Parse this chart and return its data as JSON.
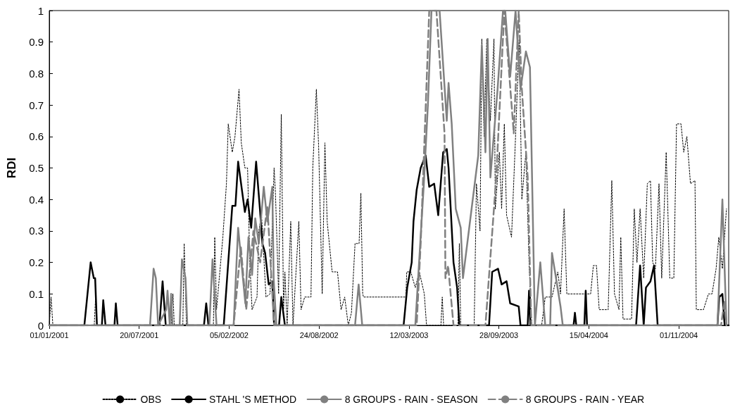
{
  "chart_data": {
    "type": "line",
    "ylabel": "RDI",
    "ylim": [
      0,
      1
    ],
    "yticks": [
      0,
      0.1,
      0.2,
      0.3,
      0.4,
      0.5,
      0.6,
      0.7,
      0.8,
      0.9,
      1
    ],
    "xlim": [
      "2001-01-01",
      "2005-02-20"
    ],
    "xticks": [
      {
        "value": "2001-01-01",
        "label": "01/01/2001"
      },
      {
        "value": "2001-07-20",
        "label": "20/07/2001"
      },
      {
        "value": "2002-02-05",
        "label": "05/02/2002"
      },
      {
        "value": "2002-08-24",
        "label": "24/08/2002"
      },
      {
        "value": "2003-03-12",
        "label": "12/03/2003"
      },
      {
        "value": "2003-09-28",
        "label": "28/09/2003"
      },
      {
        "value": "2004-04-15",
        "label": "15/04/2004"
      },
      {
        "value": "2004-11-01",
        "label": "01/11/2004"
      }
    ],
    "grid": false,
    "legend": "bottom",
    "marker": "none",
    "series": [
      {
        "name": "OBS",
        "color": "#000000",
        "line_style": "dotted",
        "x": [
          "2001-01-01",
          "2001-01-05",
          "2001-01-09",
          "2001-04-11",
          "2001-04-14",
          "2001-04-17",
          "2001-09-29",
          "2001-10-03",
          "2001-10-06",
          "2001-10-25",
          "2001-10-28",
          "2001-11-02",
          "2002-01-01",
          "2002-01-04",
          "2002-01-08",
          "2002-01-22",
          "2002-01-30",
          "2002-02-03",
          "2002-02-12",
          "2002-02-18",
          "2002-02-27",
          "2002-03-04",
          "2002-03-12",
          "2002-03-18",
          "2002-03-23",
          "2002-03-28",
          "2002-04-08",
          "2002-04-12",
          "2002-04-18",
          "2002-04-28",
          "2002-05-07",
          "2002-05-16",
          "2002-05-19",
          "2002-05-26",
          "2002-06-01",
          "2002-06-06",
          "2002-06-09",
          "2002-06-14",
          "2002-06-22",
          "2002-06-27",
          "2002-07-10",
          "2002-07-15",
          "2002-07-23",
          "2002-08-06",
          "2002-08-10",
          "2002-08-18",
          "2002-08-23",
          "2002-08-31",
          "2002-09-06",
          "2002-09-11",
          "2002-09-22",
          "2002-10-04",
          "2002-10-12",
          "2002-10-20",
          "2002-10-28",
          "2002-11-04",
          "2002-11-12",
          "2002-11-21",
          "2002-11-25",
          "2002-11-29",
          "2002-12-01",
          "2003-03-05",
          "2003-03-07",
          "2003-03-16",
          "2003-03-26",
          "2003-04-04",
          "2003-04-15",
          "2003-04-20",
          "2003-05-22",
          "2003-05-25",
          "2003-05-28",
          "2003-06-29",
          "2003-07-02",
          "2003-07-05",
          "2003-08-04",
          "2003-08-09",
          "2003-08-17",
          "2003-08-21",
          "2003-08-26",
          "2003-09-01",
          "2003-09-09",
          "2003-09-17",
          "2003-09-20",
          "2003-09-29",
          "2003-10-04",
          "2003-10-10",
          "2003-10-15",
          "2003-10-26",
          "2003-11-04",
          "2003-11-12",
          "2003-11-18",
          "2003-11-27",
          "2003-12-04",
          "2003-12-10",
          "2004-01-01",
          "2004-01-09",
          "2004-01-24",
          "2004-02-06",
          "2004-02-12",
          "2004-02-20",
          "2004-02-26",
          "2004-04-19",
          "2004-04-25",
          "2004-05-02",
          "2004-05-08",
          "2004-05-28",
          "2004-06-05",
          "2004-06-11",
          "2004-06-21",
          "2004-06-25",
          "2004-06-30",
          "2004-07-19",
          "2004-07-25",
          "2004-07-31",
          "2004-08-07",
          "2004-08-15",
          "2004-08-23",
          "2004-08-30",
          "2004-09-04",
          "2004-09-10",
          "2004-09-18",
          "2004-09-24",
          "2004-10-04",
          "2004-10-12",
          "2004-10-21",
          "2004-10-27",
          "2004-11-06",
          "2004-11-12",
          "2004-11-19",
          "2004-11-27",
          "2004-12-07",
          "2004-12-10",
          "2004-12-26",
          "2005-01-06",
          "2005-01-14",
          "2005-01-23",
          "2005-01-29",
          "2005-02-06",
          "2005-02-15"
        ],
        "values": [
          0,
          0.09,
          0,
          0,
          0.09,
          0,
          0,
          0.1,
          0,
          0,
          0.26,
          0,
          0,
          0.28,
          0.05,
          0.28,
          0.45,
          0.64,
          0.55,
          0.6,
          0.75,
          0.58,
          0.5,
          0.5,
          0.2,
          0.05,
          0.09,
          0.3,
          0.35,
          0.09,
          0.1,
          0.5,
          0.42,
          0.1,
          0.67,
          0.05,
          0.17,
          0,
          0.33,
          0,
          0.33,
          0.05,
          0.09,
          0.09,
          0.5,
          0.75,
          0.57,
          0.1,
          0.58,
          0.33,
          0.17,
          0.17,
          0.05,
          0.09,
          0,
          0.04,
          0.26,
          0.26,
          0.42,
          0.1,
          0.09,
          0.09,
          0.17,
          0.17,
          0.12,
          0.17,
          0.1,
          0,
          0,
          0.09,
          0,
          0,
          0.26,
          0,
          0,
          0.45,
          0.3,
          0.91,
          0.6,
          0.91,
          0.65,
          0.91,
          0.37,
          0.55,
          0.37,
          0.64,
          0.35,
          0.28,
          0.6,
          0.91,
          0.4,
          0.55,
          0.2,
          0,
          0,
          0.09,
          0.09,
          0.17,
          0.1,
          0.37,
          0.1,
          0.1,
          0.19,
          0.19,
          0.05,
          0.05,
          0.46,
          0.1,
          0.05,
          0.28,
          0.02,
          0.02,
          0.37,
          0.2,
          0.37,
          0.15,
          0.45,
          0.46,
          0.2,
          0.18,
          0.45,
          0.15,
          0.55,
          0.15,
          0.15,
          0.64,
          0.64,
          0.55,
          0.6,
          0.45,
          0.46,
          0.05,
          0.05,
          0.1,
          0.1,
          0.18,
          0.28,
          0.18,
          0.37
        ]
      },
      {
        "name": "STAHL 'S METHOD",
        "color": "#000000",
        "line_style": "solid",
        "x": [
          "2001-01-01",
          "2001-03-20",
          "2001-04-03",
          "2001-04-10",
          "2001-04-13",
          "2001-04-17",
          "2001-04-28",
          "2001-05-01",
          "2001-05-06",
          "2001-05-26",
          "2001-05-29",
          "2001-06-02",
          "2001-09-03",
          "2001-09-10",
          "2001-09-17",
          "2001-12-11",
          "2001-12-16",
          "2001-12-21",
          "2002-01-24",
          "2002-02-12",
          "2002-02-19",
          "2002-02-25",
          "2002-03-12",
          "2002-03-18",
          "2002-03-26",
          "2002-04-06",
          "2002-04-15",
          "2002-04-20",
          "2002-04-26",
          "2002-05-04",
          "2002-05-12",
          "2002-05-16",
          "2002-05-27",
          "2002-06-01",
          "2002-06-09",
          "2003-02-28",
          "2003-03-08",
          "2003-03-18",
          "2003-03-22",
          "2003-03-29",
          "2003-04-07",
          "2003-04-18",
          "2003-04-26",
          "2003-05-07",
          "2003-05-16",
          "2003-05-27",
          "2003-06-04",
          "2003-06-08",
          "2003-06-19",
          "2003-06-27",
          "2003-07-02",
          "2003-09-06",
          "2003-09-13",
          "2003-09-26",
          "2003-10-04",
          "2003-10-15",
          "2003-10-23",
          "2003-11-11",
          "2003-11-15",
          "2003-12-01",
          "2003-12-04",
          "2003-12-07",
          "2004-03-12",
          "2004-03-15",
          "2004-03-18",
          "2004-04-05",
          "2004-04-08",
          "2004-04-11",
          "2004-07-29",
          "2004-08-07",
          "2004-08-15",
          "2004-08-20",
          "2004-08-30",
          "2004-09-07",
          "2004-09-15",
          "2005-01-26",
          "2005-01-30",
          "2005-02-06",
          "2005-02-11",
          "2005-02-20"
        ],
        "values": [
          0,
          0,
          0.2,
          0.15,
          0.15,
          0,
          0,
          0.08,
          0,
          0,
          0.07,
          0,
          0,
          0.14,
          0,
          0,
          0.07,
          0,
          0,
          0.38,
          0.38,
          0.52,
          0.36,
          0.4,
          0.31,
          0.52,
          0.36,
          0.26,
          0.23,
          0.13,
          0.14,
          0,
          0,
          0.09,
          0,
          0,
          0.12,
          0.2,
          0.33,
          0.43,
          0.5,
          0.54,
          0.44,
          0.45,
          0.35,
          0.55,
          0.56,
          0.5,
          0.2,
          0.12,
          0,
          0,
          0.17,
          0.18,
          0.13,
          0.14,
          0.07,
          0.06,
          0,
          0,
          0.11,
          0,
          0,
          0.04,
          0,
          0,
          0.11,
          0,
          0,
          0.19,
          0,
          0.12,
          0.14,
          0.19,
          0,
          0,
          0.09,
          0.1,
          0,
          0
        ]
      },
      {
        "name": "8 GROUPS - RAIN - SEASON",
        "color": "#808080",
        "line_style": "solid",
        "x": [
          "2001-01-01",
          "2001-08-13",
          "2001-08-21",
          "2001-08-26",
          "2001-08-31",
          "2001-09-18",
          "2001-09-21",
          "2001-09-26",
          "2001-09-29",
          "2001-10-02",
          "2001-10-18",
          "2001-10-23",
          "2001-10-31",
          "2001-11-04",
          "2001-12-23",
          "2001-12-30",
          "2002-01-08",
          "2002-02-15",
          "2002-02-25",
          "2002-03-13",
          "2002-03-20",
          "2002-03-28",
          "2002-04-04",
          "2002-04-12",
          "2002-04-23",
          "2002-05-01",
          "2002-05-12",
          "2002-05-15",
          "2002-05-21",
          "2002-11-12",
          "2002-11-20",
          "2002-11-28",
          "2003-03-26",
          "2003-04-14",
          "2003-04-23",
          "2003-05-01",
          "2003-05-19",
          "2003-06-04",
          "2003-06-08",
          "2003-06-15",
          "2003-06-24",
          "2003-07-05",
          "2003-07-10",
          "2003-08-13",
          "2003-08-21",
          "2003-08-29",
          "2003-09-03",
          "2003-09-09",
          "2003-09-25",
          "2003-10-07",
          "2003-10-12",
          "2003-10-23",
          "2003-11-04",
          "2003-11-15",
          "2003-11-27",
          "2003-12-06",
          "2003-12-17",
          "2003-12-29",
          "2004-01-09",
          "2004-01-20",
          "2004-01-24",
          "2004-02-02",
          "2004-02-12",
          "2004-02-17",
          "2005-01-26",
          "2005-02-06",
          "2005-02-15"
        ],
        "values": [
          0,
          0,
          0.18,
          0.15,
          0,
          0.05,
          0.11,
          0,
          0.1,
          0,
          0,
          0.21,
          0.15,
          0,
          0,
          0.21,
          0,
          0,
          0.31,
          0.07,
          0.28,
          0.16,
          0.34,
          0.26,
          0.44,
          0.33,
          0.44,
          0.15,
          0,
          0,
          0.13,
          0,
          0,
          0.45,
          0.7,
          1,
          1,
          0.65,
          0.77,
          0.64,
          0.37,
          0.31,
          0.15,
          0.54,
          0.89,
          0.55,
          0.91,
          0.47,
          0.75,
          1,
          1,
          0.79,
          1,
          0.75,
          0.87,
          0.82,
          0,
          0.2,
          0,
          0,
          0.23,
          0.15,
          0.06,
          0,
          0,
          0.4,
          0
        ]
      },
      {
        "name": "8 GROUPS - RAIN - YEAR",
        "color": "#808080",
        "line_style": "dashed",
        "x": [
          "2001-01-01",
          "2002-02-15",
          "2002-03-03",
          "2002-03-15",
          "2002-03-31",
          "2002-04-15",
          "2002-05-01",
          "2002-05-16",
          "2003-03-29",
          "2003-04-07",
          "2003-04-26",
          "2003-05-12",
          "2003-05-30",
          "2003-06-01",
          "2003-06-07",
          "2003-06-19",
          "2003-08-29",
          "2003-09-22",
          "2003-10-10",
          "2003-10-31",
          "2003-11-11",
          "2003-11-18",
          "2003-12-01",
          "2003-12-09",
          "2005-02-03",
          "2005-02-11",
          "2005-02-15"
        ],
        "values": [
          0,
          0,
          0.25,
          0.05,
          0.3,
          0.2,
          0.38,
          0,
          0,
          0.26,
          1,
          1,
          0.61,
          0.15,
          0.19,
          0,
          0,
          0.47,
          1,
          0.61,
          1,
          0.75,
          0.47,
          0,
          0,
          0.08,
          0
        ]
      }
    ]
  }
}
